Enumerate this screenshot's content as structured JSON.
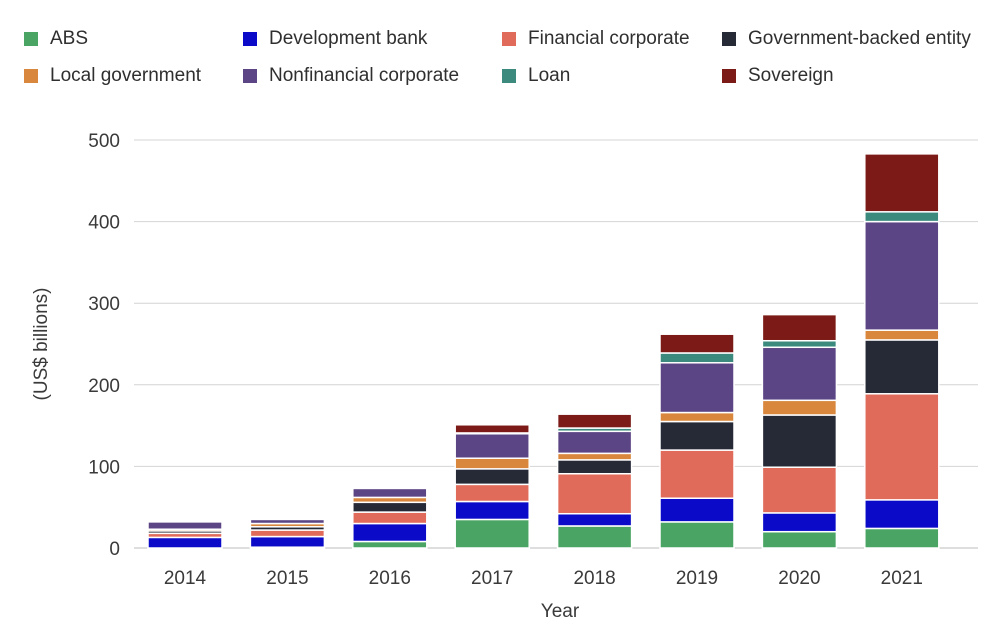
{
  "chart_data": {
    "type": "bar",
    "stacked": true,
    "xlabel": "Year",
    "ylabel": "(US$ billions)",
    "ylim": [
      0,
      500
    ],
    "yticks": [
      0,
      100,
      200,
      300,
      400,
      500
    ],
    "grid": true,
    "legend_position": "top",
    "categories": [
      "2014",
      "2015",
      "2016",
      "2017",
      "2018",
      "2019",
      "2020",
      "2021"
    ],
    "series": [
      {
        "name": "ABS",
        "color": "#4aa564",
        "values": [
          0,
          1,
          8,
          35,
          27,
          32,
          20,
          24
        ]
      },
      {
        "name": "Development bank",
        "color": "#0a0ac8",
        "values": [
          13,
          13,
          22,
          22,
          15,
          29,
          23,
          35
        ]
      },
      {
        "name": "Financial corporate",
        "color": "#e06b5a",
        "values": [
          5,
          8,
          14,
          21,
          49,
          59,
          56,
          130
        ]
      },
      {
        "name": "Government-backed entity",
        "color": "#262936",
        "values": [
          3,
          4,
          12,
          19,
          17,
          35,
          64,
          66
        ]
      },
      {
        "name": "Local government",
        "color": "#d9873c",
        "values": [
          2,
          4,
          6,
          13,
          8,
          11,
          18,
          12
        ]
      },
      {
        "name": "Nonfinancial corporate",
        "color": "#5c4585",
        "values": [
          9,
          5,
          11,
          30,
          27,
          61,
          65,
          133
        ]
      },
      {
        "name": "Loan",
        "color": "#3c8a7e",
        "values": [
          0,
          0,
          0,
          1,
          4,
          12,
          8,
          12
        ]
      },
      {
        "name": "Sovereign",
        "color": "#7b1a16",
        "values": [
          0,
          0,
          0,
          10,
          17,
          23,
          32,
          71
        ]
      }
    ]
  }
}
